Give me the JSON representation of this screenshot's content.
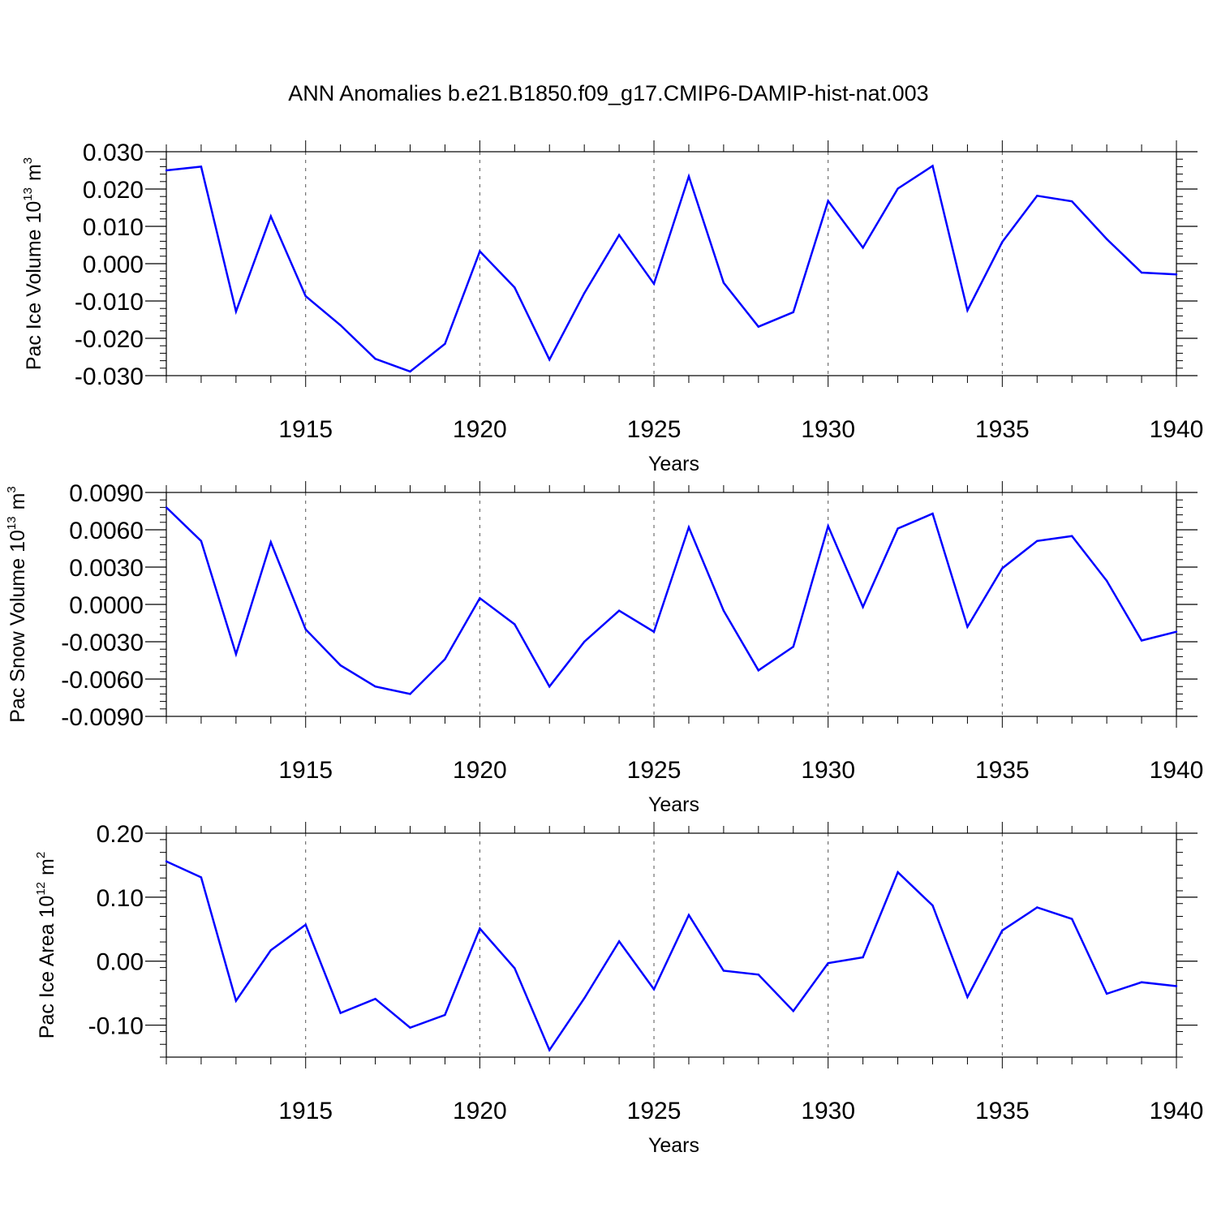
{
  "figure": {
    "title": "ANN Anomalies b.e21.B1850.f09_g17.CMIP6-DAMIP-hist-nat.003",
    "line_color": "#0000ff",
    "axis_color": "#000000",
    "grid_style": "dashed vertical lines at major x ticks"
  },
  "chart_data": [
    {
      "type": "line",
      "ylabel": "Pac Ice Volume 10",
      "ylabel_exp": "13",
      "ylabel_unit": "m",
      "ylabel_unit_exp": "3",
      "xlabel": "Years",
      "xlim": [
        1911,
        1940
      ],
      "ylim": [
        -0.03,
        0.03
      ],
      "yticks": [
        0.03,
        0.02,
        0.01,
        0.0,
        -0.01,
        -0.02,
        -0.03
      ],
      "yticklabels": [
        "0.030",
        "0.020",
        "0.010",
        "0.000",
        "-0.010",
        "-0.020",
        "-0.030"
      ],
      "xticks": [
        1915,
        1920,
        1925,
        1930,
        1935,
        1940
      ],
      "xticklabels": [
        "1915",
        "1920",
        "1925",
        "1930",
        "1935",
        "1940"
      ],
      "grid": true,
      "x": [
        1911,
        1912,
        1913,
        1914,
        1915,
        1916,
        1917,
        1918,
        1919,
        1920,
        1921,
        1922,
        1923,
        1924,
        1925,
        1926,
        1927,
        1928,
        1929,
        1930,
        1931,
        1932,
        1933,
        1934,
        1935,
        1936,
        1937,
        1938,
        1939,
        1940
      ],
      "y": [
        0.025,
        0.026,
        -0.0128,
        0.0127,
        -0.0087,
        -0.0165,
        -0.0255,
        -0.0289,
        -0.0215,
        0.0033,
        -0.0064,
        -0.0257,
        -0.0079,
        0.0077,
        -0.0054,
        0.0234,
        -0.0051,
        -0.0169,
        -0.013,
        0.0168,
        0.0043,
        0.0201,
        0.0262,
        -0.0125,
        0.0058,
        0.0182,
        0.0167,
        0.0066,
        -0.0024,
        -0.0029
      ]
    },
    {
      "type": "line",
      "ylabel": "Pac Snow Volume 10",
      "ylabel_exp": "13",
      "ylabel_unit": "m",
      "ylabel_unit_exp": "3",
      "xlabel": "Years",
      "xlim": [
        1911,
        1940
      ],
      "ylim": [
        -0.009,
        0.009
      ],
      "yticks": [
        0.009,
        0.006,
        0.003,
        0.0,
        -0.003,
        -0.006,
        -0.009
      ],
      "yticklabels": [
        "0.0090",
        "0.0060",
        "0.0030",
        "0.0000",
        "-0.0030",
        "-0.0060",
        "-0.0090"
      ],
      "xticks": [
        1915,
        1920,
        1925,
        1930,
        1935,
        1940
      ],
      "xticklabels": [
        "1915",
        "1920",
        "1925",
        "1930",
        "1935",
        "1940"
      ],
      "grid": true,
      "x": [
        1911,
        1912,
        1913,
        1914,
        1915,
        1916,
        1917,
        1918,
        1919,
        1920,
        1921,
        1922,
        1923,
        1924,
        1925,
        1926,
        1927,
        1928,
        1929,
        1930,
        1931,
        1932,
        1933,
        1934,
        1935,
        1936,
        1937,
        1938,
        1939,
        1940
      ],
      "y": [
        0.0078,
        0.0051,
        -0.004,
        0.005,
        -0.002,
        -0.0049,
        -0.0066,
        -0.0072,
        -0.0044,
        0.0005,
        -0.0016,
        -0.0066,
        -0.003,
        -0.0005,
        -0.0022,
        0.0062,
        -0.0005,
        -0.0053,
        -0.0034,
        0.0063,
        -0.0002,
        0.0061,
        0.0073,
        -0.0018,
        0.0029,
        0.0051,
        0.0055,
        0.0019,
        -0.0029,
        -0.0022
      ]
    },
    {
      "type": "line",
      "ylabel": "Pac Ice Area 10",
      "ylabel_exp": "12",
      "ylabel_unit": "m",
      "ylabel_unit_exp": "2",
      "xlabel": "Years",
      "xlim": [
        1911,
        1940
      ],
      "ylim": [
        -0.15,
        0.2
      ],
      "yticks": [
        0.2,
        0.1,
        0.0,
        -0.1
      ],
      "yticklabels": [
        "0.20",
        "0.10",
        "0.00",
        "-0.10"
      ],
      "xticks": [
        1915,
        1920,
        1925,
        1930,
        1935,
        1940
      ],
      "xticklabels": [
        "1915",
        "1920",
        "1925",
        "1930",
        "1935",
        "1940"
      ],
      "grid": true,
      "x": [
        1911,
        1912,
        1913,
        1914,
        1915,
        1916,
        1917,
        1918,
        1919,
        1920,
        1921,
        1922,
        1923,
        1924,
        1925,
        1926,
        1927,
        1928,
        1929,
        1930,
        1931,
        1932,
        1933,
        1934,
        1935,
        1936,
        1937,
        1938,
        1939,
        1940
      ],
      "y": [
        0.156,
        0.131,
        -0.062,
        0.017,
        0.057,
        -0.081,
        -0.059,
        -0.104,
        -0.084,
        0.051,
        -0.011,
        -0.139,
        -0.058,
        0.031,
        -0.044,
        0.072,
        -0.015,
        -0.021,
        -0.078,
        -0.003,
        0.006,
        0.139,
        0.087,
        -0.056,
        0.048,
        0.084,
        0.066,
        -0.051,
        -0.033,
        -0.039
      ]
    }
  ]
}
